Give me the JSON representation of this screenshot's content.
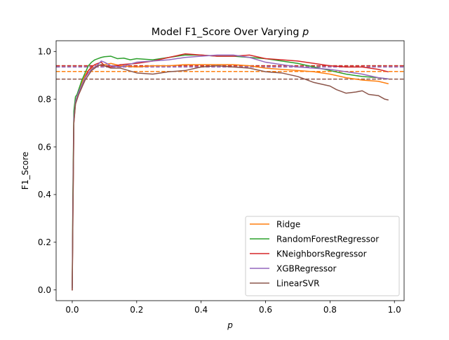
{
  "chart_data": {
    "type": "line",
    "title": "Model F1_Score Over Varying ",
    "title_var": "p",
    "xlabel": "p",
    "ylabel": "F1_Score",
    "xlim": [
      -0.05,
      1.03
    ],
    "ylim": [
      -0.045,
      1.045
    ],
    "xticks": [
      0.0,
      0.2,
      0.4,
      0.6,
      0.8,
      1.0
    ],
    "xtick_labels": [
      "0.0",
      "0.2",
      "0.4",
      "0.6",
      "0.8",
      "1.0"
    ],
    "yticks": [
      0.0,
      0.2,
      0.4,
      0.6,
      0.8,
      1.0
    ],
    "ytick_labels": [
      "0.0",
      "0.2",
      "0.4",
      "0.6",
      "0.8",
      "1.0"
    ],
    "grid": false,
    "legend_position": "lower-right",
    "series": [
      {
        "name": "Ridge",
        "color": "#ff7f0e",
        "mean": 0.916,
        "x": [
          0.0,
          0.002,
          0.005,
          0.01,
          0.015,
          0.02,
          0.03,
          0.04,
          0.05,
          0.06,
          0.07,
          0.08,
          0.09,
          0.1,
          0.12,
          0.15,
          0.2,
          0.25,
          0.3,
          0.35,
          0.4,
          0.45,
          0.5,
          0.55,
          0.6,
          0.65,
          0.7,
          0.75,
          0.8,
          0.85,
          0.9,
          0.95,
          0.98
        ],
        "y": [
          0.02,
          0.35,
          0.72,
          0.79,
          0.81,
          0.83,
          0.87,
          0.9,
          0.92,
          0.93,
          0.935,
          0.94,
          0.945,
          0.945,
          0.95,
          0.94,
          0.935,
          0.94,
          0.94,
          0.945,
          0.945,
          0.945,
          0.945,
          0.94,
          0.93,
          0.925,
          0.92,
          0.915,
          0.905,
          0.89,
          0.88,
          0.875,
          0.865
        ]
      },
      {
        "name": "RandomForestRegressor",
        "color": "#2ca02c",
        "mean": 0.94,
        "x": [
          0.0,
          0.002,
          0.005,
          0.01,
          0.015,
          0.02,
          0.03,
          0.04,
          0.05,
          0.06,
          0.07,
          0.08,
          0.09,
          0.1,
          0.12,
          0.14,
          0.16,
          0.18,
          0.2,
          0.25,
          0.3,
          0.35,
          0.4,
          0.45,
          0.5,
          0.55,
          0.6,
          0.65,
          0.7,
          0.75,
          0.8,
          0.85,
          0.9,
          0.95,
          0.98
        ],
        "y": [
          0.01,
          0.4,
          0.75,
          0.81,
          0.82,
          0.84,
          0.88,
          0.91,
          0.94,
          0.955,
          0.965,
          0.97,
          0.975,
          0.978,
          0.98,
          0.97,
          0.972,
          0.965,
          0.97,
          0.965,
          0.975,
          0.985,
          0.985,
          0.98,
          0.98,
          0.975,
          0.97,
          0.96,
          0.95,
          0.935,
          0.92,
          0.905,
          0.895,
          0.89,
          0.885
        ]
      },
      {
        "name": "KNeighborsRegressor",
        "color": "#d62728",
        "mean": 0.94,
        "x": [
          0.0,
          0.002,
          0.005,
          0.01,
          0.015,
          0.02,
          0.03,
          0.04,
          0.05,
          0.06,
          0.07,
          0.08,
          0.09,
          0.1,
          0.12,
          0.15,
          0.2,
          0.25,
          0.3,
          0.35,
          0.4,
          0.45,
          0.5,
          0.55,
          0.6,
          0.65,
          0.7,
          0.75,
          0.8,
          0.85,
          0.9,
          0.95,
          0.98
        ],
        "y": [
          0.0,
          0.3,
          0.7,
          0.78,
          0.8,
          0.82,
          0.85,
          0.89,
          0.92,
          0.935,
          0.945,
          0.95,
          0.955,
          0.94,
          0.935,
          0.945,
          0.95,
          0.96,
          0.975,
          0.99,
          0.985,
          0.98,
          0.98,
          0.985,
          0.97,
          0.965,
          0.96,
          0.95,
          0.94,
          0.935,
          0.935,
          0.925,
          0.915
        ]
      },
      {
        "name": "XGBRegressor",
        "color": "#9467bd",
        "mean": 0.935,
        "x": [
          0.0,
          0.002,
          0.005,
          0.01,
          0.015,
          0.02,
          0.03,
          0.04,
          0.05,
          0.06,
          0.07,
          0.08,
          0.09,
          0.1,
          0.12,
          0.15,
          0.2,
          0.25,
          0.3,
          0.35,
          0.4,
          0.45,
          0.5,
          0.55,
          0.6,
          0.65,
          0.7,
          0.75,
          0.8,
          0.85,
          0.9,
          0.95,
          0.98
        ],
        "y": [
          0.01,
          0.35,
          0.72,
          0.79,
          0.81,
          0.83,
          0.86,
          0.89,
          0.91,
          0.925,
          0.935,
          0.945,
          0.96,
          0.955,
          0.94,
          0.935,
          0.955,
          0.96,
          0.965,
          0.975,
          0.98,
          0.985,
          0.985,
          0.975,
          0.955,
          0.945,
          0.935,
          0.93,
          0.925,
          0.915,
          0.905,
          0.89,
          0.885
        ]
      },
      {
        "name": "LinearSVR",
        "color": "#8c564b",
        "mean": 0.884,
        "x": [
          0.0,
          0.002,
          0.005,
          0.01,
          0.015,
          0.02,
          0.03,
          0.04,
          0.05,
          0.06,
          0.07,
          0.08,
          0.09,
          0.1,
          0.12,
          0.15,
          0.2,
          0.25,
          0.3,
          0.35,
          0.4,
          0.45,
          0.5,
          0.55,
          0.6,
          0.65,
          0.7,
          0.72,
          0.75,
          0.8,
          0.82,
          0.85,
          0.88,
          0.9,
          0.92,
          0.95,
          0.97,
          0.98
        ],
        "y": [
          0.0,
          0.3,
          0.7,
          0.78,
          0.8,
          0.82,
          0.85,
          0.88,
          0.9,
          0.92,
          0.93,
          0.94,
          0.945,
          0.94,
          0.93,
          0.93,
          0.91,
          0.905,
          0.915,
          0.92,
          0.935,
          0.94,
          0.935,
          0.93,
          0.915,
          0.91,
          0.895,
          0.885,
          0.87,
          0.855,
          0.84,
          0.825,
          0.83,
          0.835,
          0.82,
          0.815,
          0.8,
          0.797
        ]
      }
    ]
  }
}
